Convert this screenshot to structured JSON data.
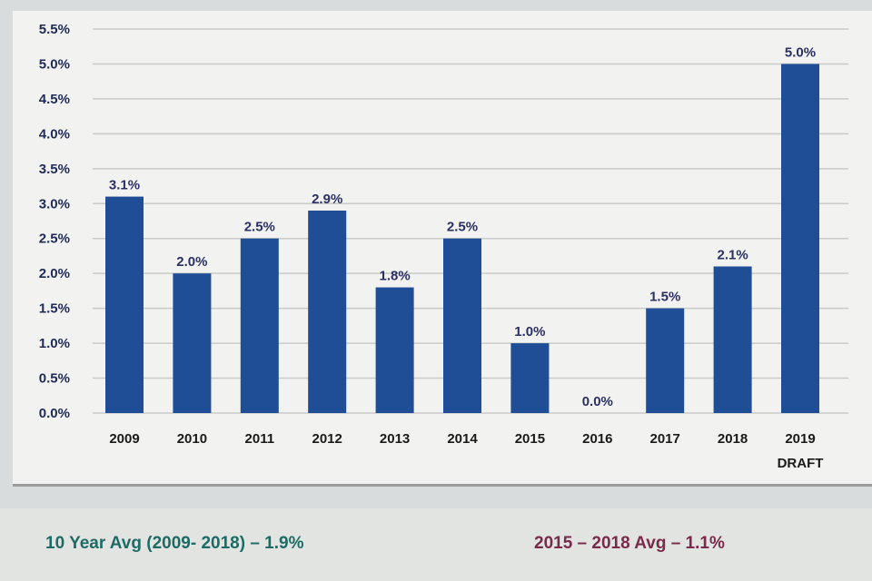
{
  "chart_data": {
    "type": "bar",
    "categories": [
      "2009",
      "2010",
      "2011",
      "2012",
      "2013",
      "2014",
      "2015",
      "2016",
      "2017",
      "2018",
      "2019"
    ],
    "category_sublabels": [
      "",
      "",
      "",
      "",
      "",
      "",
      "",
      "",
      "",
      "",
      "DRAFT"
    ],
    "values": [
      3.1,
      2.0,
      2.5,
      2.9,
      1.8,
      2.5,
      1.0,
      0.0,
      1.5,
      2.1,
      5.0
    ],
    "data_labels": [
      "3.1%",
      "2.0%",
      "2.5%",
      "2.9%",
      "1.8%",
      "2.5%",
      "1.0%",
      "0.0%",
      "1.5%",
      "2.1%",
      "5.0%"
    ],
    "y_ticks": [
      "0.0%",
      "0.5%",
      "1.0%",
      "1.5%",
      "2.0%",
      "2.5%",
      "3.0%",
      "3.5%",
      "4.0%",
      "4.5%",
      "5.0%",
      "5.5%"
    ],
    "ylim": [
      0,
      5.5
    ],
    "grid": true,
    "legend": "none",
    "title": "",
    "xlabel": "",
    "ylabel": "",
    "bar_color": "#1f4e96"
  },
  "footer": {
    "avg_10yr": "10 Year Avg (2009- 2018) – 1.9%",
    "avg_2015_2018": "2015 – 2018 Avg – 1.1%"
  },
  "colors": {
    "background": "#d9dcdc",
    "panel": "#f2f3f1",
    "gridline": "#c9cbc8",
    "avg_10yr_text": "#1e6a64",
    "avg_2015_2018_text": "#7a2a4a"
  }
}
